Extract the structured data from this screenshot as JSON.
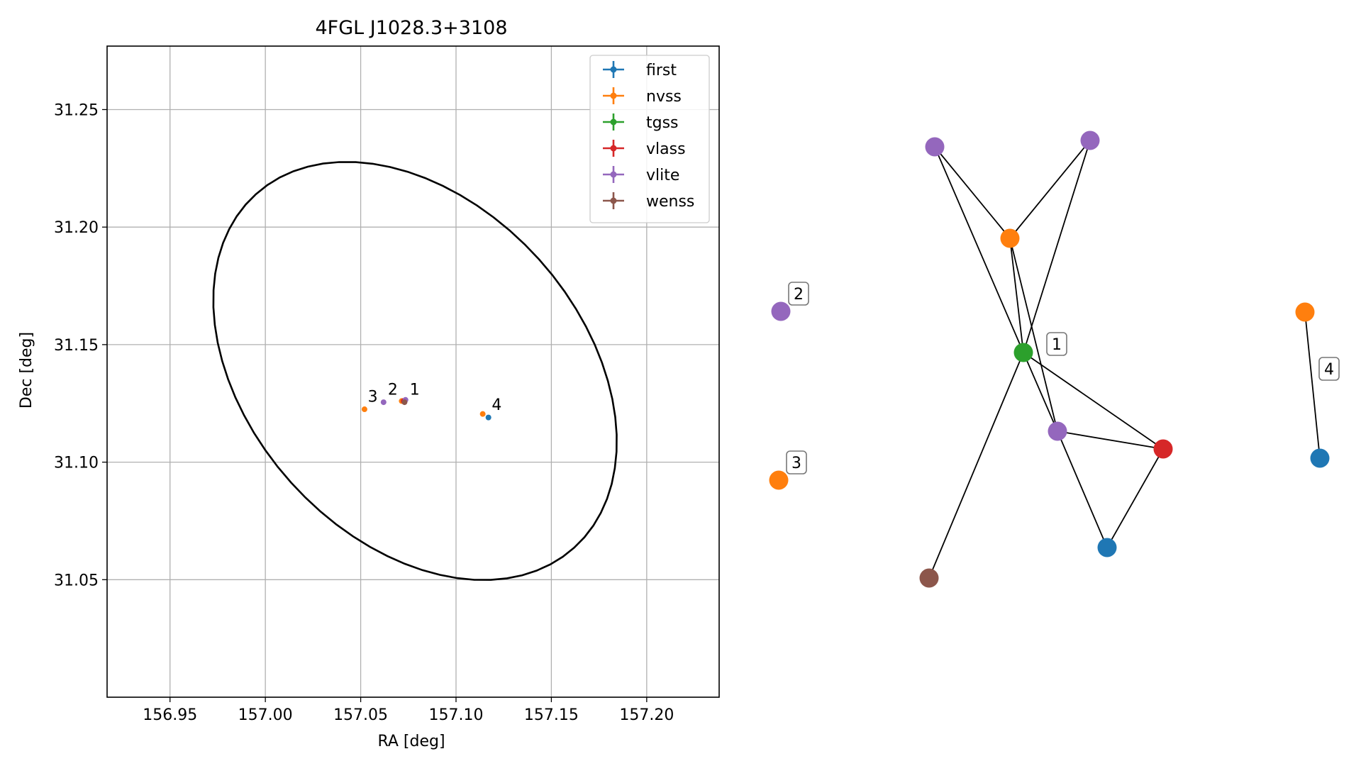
{
  "chart_data": [
    {
      "type": "scatter",
      "title": "4FGL J1028.3+3108",
      "xlabel": "RA [deg]",
      "ylabel": "Dec [deg]",
      "xlim": [
        156.917,
        157.238
      ],
      "ylim": [
        31.0,
        31.277
      ],
      "xticks": [
        "156.95",
        "157.00",
        "157.05",
        "157.10",
        "157.15",
        "157.20"
      ],
      "yticks": [
        "31.05",
        "31.10",
        "31.15",
        "31.20",
        "31.25"
      ],
      "grid": true,
      "legend_position": "top-right",
      "series": [
        {
          "name": "first",
          "color": "#1f77b4",
          "points": [
            {
              "x": 157.117,
              "y": 31.119
            },
            {
              "x": 157.072,
              "y": 31.126
            }
          ]
        },
        {
          "name": "nvss",
          "color": "#ff7f0e",
          "points": [
            {
              "x": 157.052,
              "y": 31.1225
            },
            {
              "x": 157.114,
              "y": 31.1205
            },
            {
              "x": 157.0715,
              "y": 31.126
            }
          ]
        },
        {
          "name": "tgss",
          "color": "#2ca02c",
          "points": [
            {
              "x": 157.073,
              "y": 31.126
            }
          ]
        },
        {
          "name": "vlass",
          "color": "#d62728",
          "points": [
            {
              "x": 157.0725,
              "y": 31.126
            }
          ]
        },
        {
          "name": "vlite",
          "color": "#9467bd",
          "points": [
            {
              "x": 157.062,
              "y": 31.1255
            },
            {
              "x": 157.0735,
              "y": 31.1265
            }
          ]
        },
        {
          "name": "wenss",
          "color": "#8c564b",
          "points": [
            {
              "x": 157.073,
              "y": 31.1255
            }
          ]
        }
      ],
      "ellipse": {
        "center": {
          "x": 157.0785,
          "y": 31.1388
        },
        "semi_major": 0.0875,
        "semi_minor": 0.088,
        "color": "#000000"
      },
      "annotations": [
        {
          "text": "1",
          "x": 157.0735,
          "y": 31.126
        },
        {
          "text": "2",
          "x": 157.062,
          "y": 31.126
        },
        {
          "text": "3",
          "x": 157.0515,
          "y": 31.123
        },
        {
          "text": "4",
          "x": 157.1165,
          "y": 31.1195
        }
      ]
    },
    {
      "type": "network",
      "node_colors": {
        "first": "#1f77b4",
        "nvss": "#ff7f0e",
        "tgss": "#2ca02c",
        "vlass": "#d62728",
        "vlite": "#9467bd",
        "wenss": "#8c564b"
      },
      "groups": [
        {
          "label": "1",
          "nodes": [
            {
              "id": "a",
              "survey": "vlite"
            },
            {
              "id": "b",
              "survey": "vlite"
            },
            {
              "id": "c",
              "survey": "nvss"
            },
            {
              "id": "d",
              "survey": "tgss"
            },
            {
              "id": "e",
              "survey": "vlite"
            },
            {
              "id": "f",
              "survey": "vlass"
            },
            {
              "id": "g",
              "survey": "first"
            },
            {
              "id": "h",
              "survey": "wenss"
            }
          ],
          "edges": [
            [
              "a",
              "c"
            ],
            [
              "a",
              "d"
            ],
            [
              "b",
              "c"
            ],
            [
              "b",
              "d"
            ],
            [
              "c",
              "d"
            ],
            [
              "c",
              "e"
            ],
            [
              "d",
              "e"
            ],
            [
              "d",
              "f"
            ],
            [
              "d",
              "h"
            ],
            [
              "e",
              "f"
            ],
            [
              "e",
              "g"
            ],
            [
              "f",
              "g"
            ]
          ]
        },
        {
          "label": "2",
          "nodes": [
            {
              "id": "i",
              "survey": "vlite"
            }
          ],
          "edges": []
        },
        {
          "label": "3",
          "nodes": [
            {
              "id": "j",
              "survey": "nvss"
            }
          ],
          "edges": []
        },
        {
          "label": "4",
          "nodes": [
            {
              "id": "k",
              "survey": "nvss"
            },
            {
              "id": "l",
              "survey": "first"
            }
          ],
          "edges": [
            [
              "k",
              "l"
            ]
          ]
        }
      ]
    }
  ]
}
